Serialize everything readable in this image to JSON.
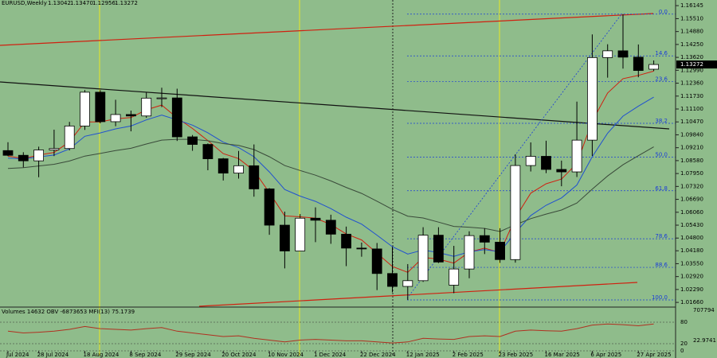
{
  "chart_data": {
    "type": "candlestick",
    "title": "EURUSD,Weekly",
    "header_values": [
      "1.13042",
      "1.13470",
      "1.12956",
      "1.13272"
    ],
    "background": "#8fbc8b",
    "categories": [
      "Jul 2024",
      null,
      "28 Jul 2024",
      null,
      null,
      "18 Aug 2024",
      null,
      null,
      "8 Sep 2024",
      null,
      null,
      "29 Sep 2024",
      null,
      null,
      "20 Oct 2024",
      null,
      null,
      "10 Nov 2024",
      null,
      null,
      "1 Dec 2024",
      null,
      null,
      "22 Dec 2024",
      null,
      null,
      "12 Jan 2025",
      null,
      null,
      "2 Feb 2025",
      null,
      null,
      "23 Feb 2025",
      null,
      null,
      "16 Mar 2025",
      null,
      null,
      "6 Apr 2025",
      null,
      null,
      "27 Apr 2025",
      null
    ],
    "open": [
      1.0907,
      1.0884,
      1.0857,
      1.091,
      1.0917,
      1.1027,
      1.1192,
      1.1048,
      1.1083,
      1.1076,
      1.1163,
      1.1164,
      1.0974,
      1.0937,
      1.0867,
      1.0797,
      1.0833,
      1.072,
      1.0543,
      1.0417,
      1.0577,
      1.0567,
      1.0499,
      1.0431,
      1.0427,
      1.0307,
      1.0244,
      1.0272,
      1.0494,
      1.025,
      1.0329,
      1.0492,
      1.046,
      1.0375,
      1.0834,
      1.0879,
      1.0815,
      1.0803,
      1.0958,
      1.1361,
      1.1394,
      1.1363,
      1.13042
    ],
    "high": [
      1.0948,
      1.0899,
      1.0926,
      1.1009,
      1.1047,
      1.1202,
      1.1202,
      1.1155,
      1.1102,
      1.119,
      1.1214,
      1.1209,
      1.0983,
      1.0942,
      1.0871,
      1.0905,
      1.0937,
      1.0724,
      1.0609,
      1.0597,
      1.063,
      1.0594,
      1.0536,
      1.0458,
      1.0456,
      1.0437,
      1.0353,
      1.0533,
      1.0533,
      1.0442,
      1.0513,
      1.0528,
      1.0528,
      1.0889,
      1.0947,
      1.0955,
      1.0858,
      1.1146,
      1.1474,
      1.1426,
      1.1573,
      1.1425,
      1.1347
    ],
    "low": [
      1.088,
      1.0825,
      1.0777,
      1.088,
      1.0908,
      1.1008,
      1.104,
      1.1026,
      1.1001,
      1.1067,
      1.1119,
      1.0954,
      1.0906,
      1.0811,
      1.0761,
      1.077,
      1.0682,
      1.0496,
      1.0332,
      1.0423,
      1.046,
      1.0452,
      1.0343,
      1.0389,
      1.0226,
      1.0215,
      1.0178,
      1.0266,
      1.0358,
      1.0211,
      1.0284,
      1.0402,
      1.0359,
      1.036,
      1.0805,
      1.0797,
      1.0733,
      1.0778,
      1.0881,
      1.1263,
      1.1307,
      1.1265,
      1.12956
    ],
    "close": [
      1.0884,
      1.0857,
      1.091,
      1.0917,
      1.1027,
      1.1192,
      1.1048,
      1.1083,
      1.1076,
      1.1163,
      1.1164,
      1.0974,
      1.0937,
      1.0867,
      1.0797,
      1.0833,
      1.072,
      1.0543,
      1.0417,
      1.0577,
      1.0567,
      1.0499,
      1.0431,
      1.0427,
      1.0307,
      1.0244,
      1.0272,
      1.0494,
      1.0363,
      1.0329,
      1.0492,
      1.046,
      1.0375,
      1.0834,
      1.0879,
      1.0815,
      1.0803,
      1.0958,
      1.1361,
      1.1394,
      1.1363,
      1.1298,
      1.13272
    ],
    "up_color": "#ffffff",
    "down_color": "#000000",
    "lines": [
      {
        "color": "#d02010",
        "values": [
          1.088,
          1.0868,
          1.0885,
          1.0898,
          1.095,
          1.1047,
          1.1047,
          1.1062,
          1.1068,
          1.1106,
          1.1129,
          1.1067,
          1.1015,
          1.0956,
          1.0892,
          1.0868,
          1.0809,
          1.0702,
          1.0588,
          1.0584,
          1.0577,
          1.0546,
          1.05,
          1.0471,
          1.0406,
          1.0341,
          1.0313,
          1.0386,
          1.0377,
          1.0358,
          1.0412,
          1.0431,
          1.0409,
          1.0579,
          1.0699,
          1.0745,
          1.0768,
          1.0844,
          1.1051,
          1.1188,
          1.1258,
          1.1274,
          1.1295
        ]
      },
      {
        "color": "#2050d0",
        "values": [
          1.087,
          1.0867,
          1.0876,
          1.0885,
          1.0915,
          1.0977,
          1.0993,
          1.1013,
          1.1027,
          1.1057,
          1.108,
          1.1057,
          1.1031,
          1.0994,
          1.0948,
          1.0922,
          1.0877,
          1.0803,
          1.0717,
          1.0685,
          1.0659,
          1.0624,
          1.0582,
          1.0548,
          1.0494,
          1.0438,
          1.0402,
          1.0422,
          1.0409,
          1.0391,
          1.0413,
          1.0424,
          1.0413,
          1.0506,
          1.059,
          1.064,
          1.0676,
          1.0739,
          1.0877,
          1.0992,
          1.1075,
          1.1124,
          1.1168
        ]
      },
      {
        "color": "#3a4a3a",
        "values": [
          1.082,
          1.0824,
          1.0832,
          1.084,
          1.0856,
          1.088,
          1.0893,
          1.0907,
          1.0918,
          1.0939,
          1.0958,
          1.0962,
          1.0962,
          1.0955,
          1.0941,
          1.0932,
          1.0912,
          1.0877,
          1.0834,
          1.081,
          1.0787,
          1.0759,
          1.0727,
          1.0698,
          1.066,
          1.062,
          1.0587,
          1.0578,
          1.0558,
          1.0537,
          1.0533,
          1.0527,
          1.0512,
          1.0545,
          1.0575,
          1.0597,
          1.0617,
          1.0651,
          1.0719,
          1.0783,
          1.0838,
          1.0882,
          1.0925
        ]
      }
    ],
    "ylim": [
      1.0147,
      1.1642
    ],
    "yticks": [
      1.16145,
      {
        "value": 1.1551,
        "label": "1.15510"
      },
      {
        "value": 1.1488,
        "label": "1.14880"
      },
      {
        "value": 1.1425,
        "label": "1.14250"
      },
      {
        "value": 1.1362,
        "label": "1.13620"
      },
      {
        "value": 1.1299,
        "label": "1.12990"
      },
      {
        "value": 1.1236,
        "label": "1.12360"
      },
      {
        "value": 1.1173,
        "label": "1.11730"
      },
      {
        "value": 1.111,
        "label": "1.11100"
      },
      {
        "value": 1.1047,
        "label": "1.10470"
      },
      {
        "value": 1.0984,
        "label": "1.09840"
      },
      {
        "value": 1.0921,
        "label": "1.09210"
      },
      {
        "value": 1.0858,
        "label": "1.08580"
      },
      {
        "value": 1.0795,
        "label": "1.07950"
      },
      {
        "value": 1.0732,
        "label": "1.07320"
      },
      {
        "value": 1.0669,
        "label": "1.06690"
      },
      {
        "value": 1.0606,
        "label": "1.06060"
      },
      {
        "value": 1.0543,
        "label": "1.05430"
      },
      {
        "value": 1.048,
        "label": "1.04800"
      },
      {
        "value": 1.0418,
        "label": "1.04180"
      },
      {
        "value": 1.0355,
        "label": "1.03550"
      },
      {
        "value": 1.0292,
        "label": "1.02920"
      },
      {
        "value": 1.0229,
        "label": "1.02290"
      },
      {
        "value": 1.0166,
        "label": "1.01660"
      }
    ],
    "fib_levels": [
      {
        "value": 0,
        "label": "0.0"
      },
      14.6,
      23.6,
      38.2,
      {
        "value": 50,
        "label": "50.0"
      },
      61.8,
      78.6,
      88.6,
      {
        "value": 100,
        "label": "100.0"
      }
    ],
    "fib_color": "#1a3cd8",
    "indicator": {
      "title": "Volumes 14632  OBV -6873653  MFI(13) 75.1739",
      "labels": [
        "707794",
        "22.9741"
      ],
      "ylim": [
        0,
        100
      ],
      "yticks": [
        0,
        20,
        80
      ],
      "color": "#b03020",
      "values": [
        55,
        50,
        52,
        55,
        60,
        68,
        62,
        60,
        58,
        62,
        65,
        55,
        50,
        45,
        40,
        42,
        35,
        30,
        25,
        30,
        32,
        30,
        28,
        28,
        25,
        22,
        25,
        35,
        33,
        32,
        40,
        42,
        40,
        55,
        58,
        56,
        55,
        62,
        72,
        75,
        73,
        70,
        75.1739
      ]
    }
  }
}
